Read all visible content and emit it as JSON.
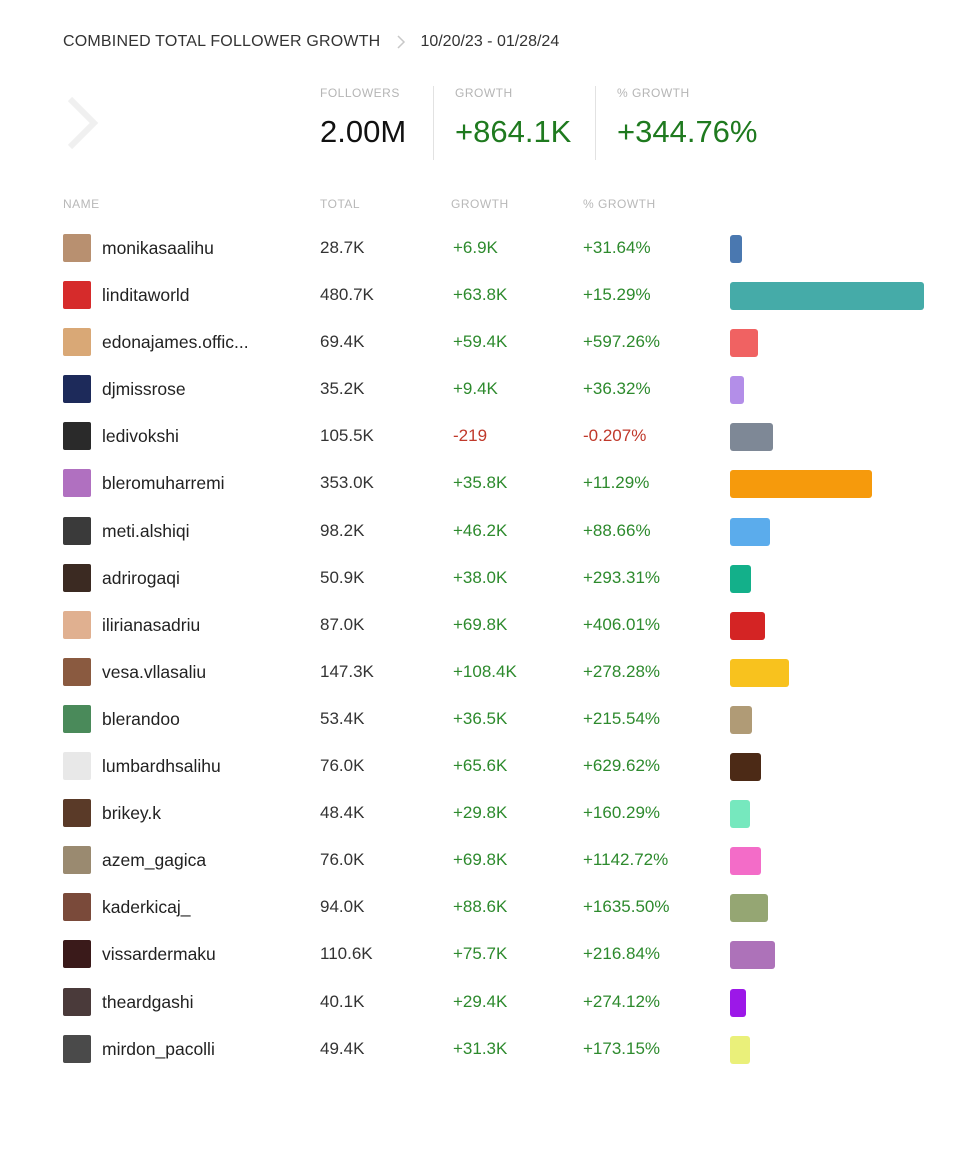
{
  "header": {
    "title": "COMBINED TOTAL FOLLOWER GROWTH",
    "date_range": "10/20/23 - 01/28/24"
  },
  "summary": {
    "followers_label": "FOLLOWERS",
    "followers_value": "2.00M",
    "growth_label": "GROWTH",
    "growth_value": "+864.1K",
    "pct_label": "% GROWTH",
    "pct_value": "+344.76%"
  },
  "columns": {
    "name": "NAME",
    "total": "TOTAL",
    "growth": "GROWTH",
    "pct": "% GROWTH"
  },
  "accounts": [
    {
      "name": "monikasaalihu",
      "total": "28.7K",
      "growth": "+6.9K",
      "pct": "+31.64%",
      "bar_color": "#4a78b0",
      "avatar_color": "#b89070",
      "bar_value": 28.7,
      "negative": false
    },
    {
      "name": "linditaworld",
      "total": "480.7K",
      "growth": "+63.8K",
      "pct": "+15.29%",
      "bar_color": "#45aba8",
      "avatar_color": "#d62b2b",
      "bar_value": 480.7,
      "negative": false
    },
    {
      "name": "edonajames.offic...",
      "total": "69.4K",
      "growth": "+59.4K",
      "pct": "+597.26%",
      "bar_color": "#f06262",
      "avatar_color": "#d9a876",
      "bar_value": 69.4,
      "negative": false
    },
    {
      "name": "djmissrose",
      "total": "35.2K",
      "growth": "+9.4K",
      "pct": "+36.32%",
      "bar_color": "#b38ee8",
      "avatar_color": "#1d2a5a",
      "bar_value": 35.2,
      "negative": false
    },
    {
      "name": "ledivokshi",
      "total": "105.5K",
      "growth": "-219",
      "pct": "-0.207%",
      "bar_color": "#7e8896",
      "avatar_color": "#2a2a2a",
      "bar_value": 105.5,
      "negative": true
    },
    {
      "name": "bleromuharremi",
      "total": "353.0K",
      "growth": "+35.8K",
      "pct": "+11.29%",
      "bar_color": "#f69a0c",
      "avatar_color": "#b070c0",
      "bar_value": 353.0,
      "negative": false
    },
    {
      "name": "meti.alshiqi",
      "total": "98.2K",
      "growth": "+46.2K",
      "pct": "+88.66%",
      "bar_color": "#5bacec",
      "avatar_color": "#3a3a3a",
      "bar_value": 98.2,
      "negative": false
    },
    {
      "name": "adrirogaqi",
      "total": "50.9K",
      "growth": "+38.0K",
      "pct": "+293.31%",
      "bar_color": "#13b08a",
      "avatar_color": "#3b2a22",
      "bar_value": 50.9,
      "negative": false
    },
    {
      "name": "ilirianasadriu",
      "total": "87.0K",
      "growth": "+69.8K",
      "pct": "+406.01%",
      "bar_color": "#d42424",
      "avatar_color": "#e0b090",
      "bar_value": 87.0,
      "negative": false
    },
    {
      "name": "vesa.vllasaliu",
      "total": "147.3K",
      "growth": "+108.4K",
      "pct": "+278.28%",
      "bar_color": "#f8c21e",
      "avatar_color": "#8a5a40",
      "bar_value": 147.3,
      "negative": false
    },
    {
      "name": "blerandoo",
      "total": "53.4K",
      "growth": "+36.5K",
      "pct": "+215.54%",
      "bar_color": "#b09b76",
      "avatar_color": "#4a8a5a",
      "bar_value": 53.4,
      "negative": false
    },
    {
      "name": "lumbardhsalihu",
      "total": "76.0K",
      "growth": "+65.6K",
      "pct": "+629.62%",
      "bar_color": "#4c2a16",
      "avatar_color": "#e8e8e8",
      "bar_value": 76.0,
      "negative": false
    },
    {
      "name": "brikey.k",
      "total": "48.4K",
      "growth": "+29.8K",
      "pct": "+160.29%",
      "bar_color": "#76e8be",
      "avatar_color": "#5a3a28",
      "bar_value": 48.4,
      "negative": false
    },
    {
      "name": "azem_gagica",
      "total": "76.0K",
      "growth": "+69.8K",
      "pct": "+1142.72%",
      "bar_color": "#f36cc8",
      "avatar_color": "#9a8a70",
      "bar_value": 76.0,
      "negative": false
    },
    {
      "name": "kaderkicaj_",
      "total": "94.0K",
      "growth": "+88.6K",
      "pct": "+1635.50%",
      "bar_color": "#95a673",
      "avatar_color": "#7a4a3a",
      "bar_value": 94.0,
      "negative": false
    },
    {
      "name": "vissardermaku",
      "total": "110.6K",
      "growth": "+75.7K",
      "pct": "+216.84%",
      "bar_color": "#ad72b9",
      "avatar_color": "#3a1a1a",
      "bar_value": 110.6,
      "negative": false
    },
    {
      "name": "theardgashi",
      "total": "40.1K",
      "growth": "+29.4K",
      "pct": "+274.12%",
      "bar_color": "#9c18e8",
      "avatar_color": "#4a3a3a",
      "bar_value": 40.1,
      "negative": false
    },
    {
      "name": "mirdon_pacolli",
      "total": "49.4K",
      "growth": "+31.3K",
      "pct": "+173.15%",
      "bar_color": "#eaf07a",
      "avatar_color": "#4a4a4a",
      "bar_value": 49.4,
      "negative": false
    }
  ]
}
